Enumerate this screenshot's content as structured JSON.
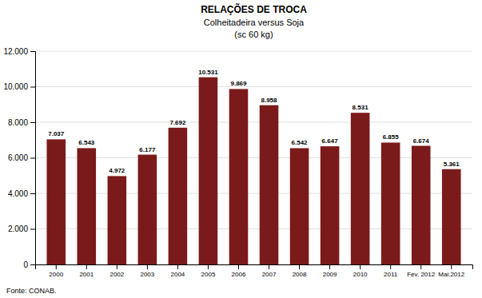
{
  "chart_data": {
    "type": "bar",
    "title": "RELAÇÕES DE TROCA",
    "subtitle": "Colheitadeira versus Soja",
    "annotations": [
      "(sc 60 kg)",
      "Fonte: CONAB."
    ],
    "categories": [
      "2000",
      "2001",
      "2002",
      "2003",
      "2004",
      "2005",
      "2006",
      "2007",
      "2008",
      "2009",
      "2010",
      "2011",
      "Fev. 2012",
      "Mai.2012"
    ],
    "values": [
      7037,
      6543,
      4972,
      6177,
      7692,
      10531,
      9869,
      8958,
      6542,
      6647,
      8531,
      6855,
      6674,
      5361
    ],
    "value_labels": [
      "7.037",
      "6.543",
      "4.972",
      "6.177",
      "7.692",
      "10.531",
      "9.869",
      "8.958",
      "6.542",
      "6.647",
      "8.531",
      "6.855",
      "6.674",
      "5.361"
    ],
    "color": "#7B1A1A",
    "ylim": [
      0,
      12000
    ],
    "yticks": [
      0,
      {
        "value": 2000,
        "label": "2.000"
      },
      {
        "value": 4000,
        "label": "4.000"
      },
      {
        "value": 6000,
        "label": "6.000"
      },
      {
        "value": 8000,
        "label": "8.000"
      },
      {
        "value": 10000,
        "label": "10.000"
      },
      {
        "value": 12000,
        "label": "12.000"
      }
    ],
    "grid": true,
    "data_labels": true
  }
}
